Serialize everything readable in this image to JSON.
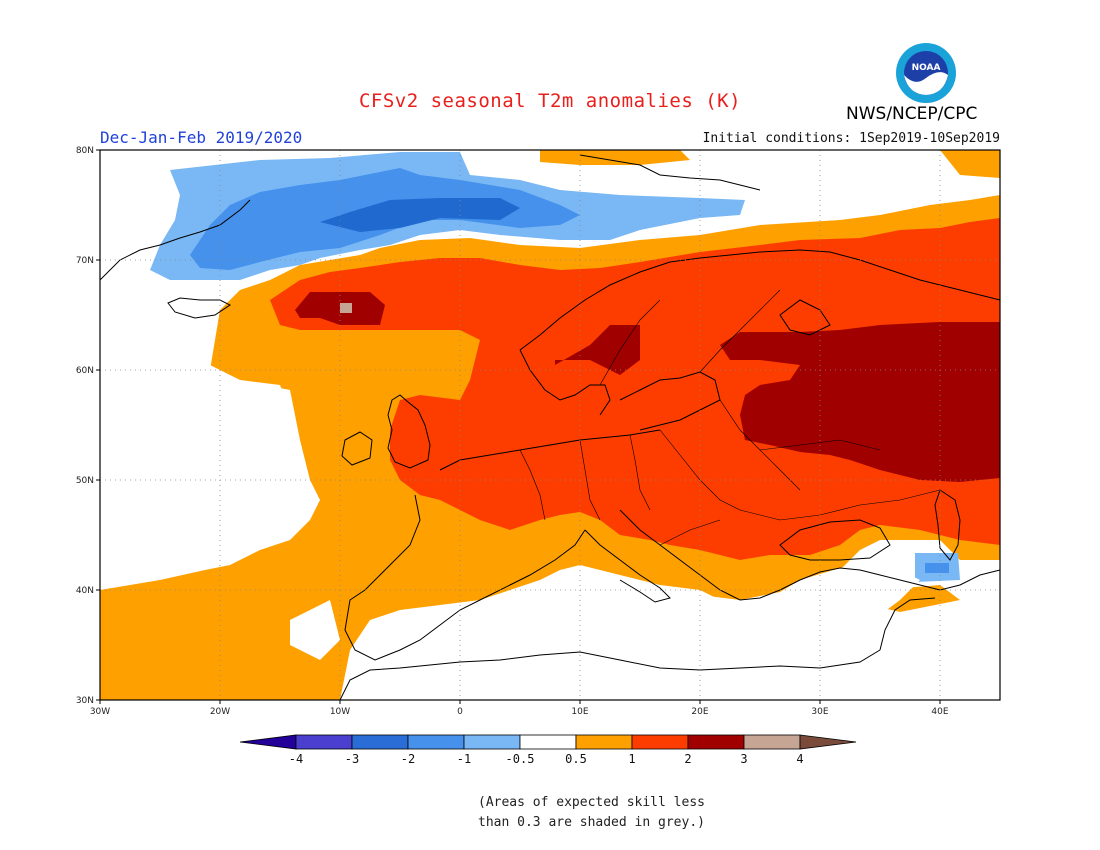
{
  "header": {
    "title": "CFSv2 seasonal T2m anomalies (K)",
    "season": "Dec-Jan-Feb 2019/2020",
    "initial_conditions": "Initial conditions: 1Sep2019-10Sep2019",
    "agency": "NWS/NCEP/CPC",
    "logo_text": "NOAA"
  },
  "map": {
    "lat_labels": [
      "80N",
      "70N",
      "60N",
      "50N",
      "40N",
      "30N"
    ],
    "lon_labels": [
      "30W",
      "20W",
      "10W",
      "0",
      "10E",
      "20E",
      "30E",
      "40E"
    ],
    "colors": {
      "lt_blue": "#79b8f5",
      "blue": "#4591ec",
      "dk_blue": "#1f69cf",
      "orange": "#fea000",
      "red_orange": "#fd3d00",
      "dark_red": "#a10000",
      "tan": "#c6a594"
    }
  },
  "colorbar": {
    "ticks": [
      "-4",
      "-3",
      "-2",
      "-1",
      "-0.5",
      "0.5",
      "1",
      "2",
      "3",
      "4"
    ],
    "colors": [
      "#220099",
      "#4a3fce",
      "#2b6dd6",
      "#4591ec",
      "#79b8f5",
      "#ffffff",
      "#fea000",
      "#fd3d00",
      "#a10000",
      "#c6a594",
      "#7a4a3a"
    ]
  },
  "note": {
    "line1": "(Areas of expected skill less",
    "line2": "than 0.3 are shaded in grey.)"
  }
}
